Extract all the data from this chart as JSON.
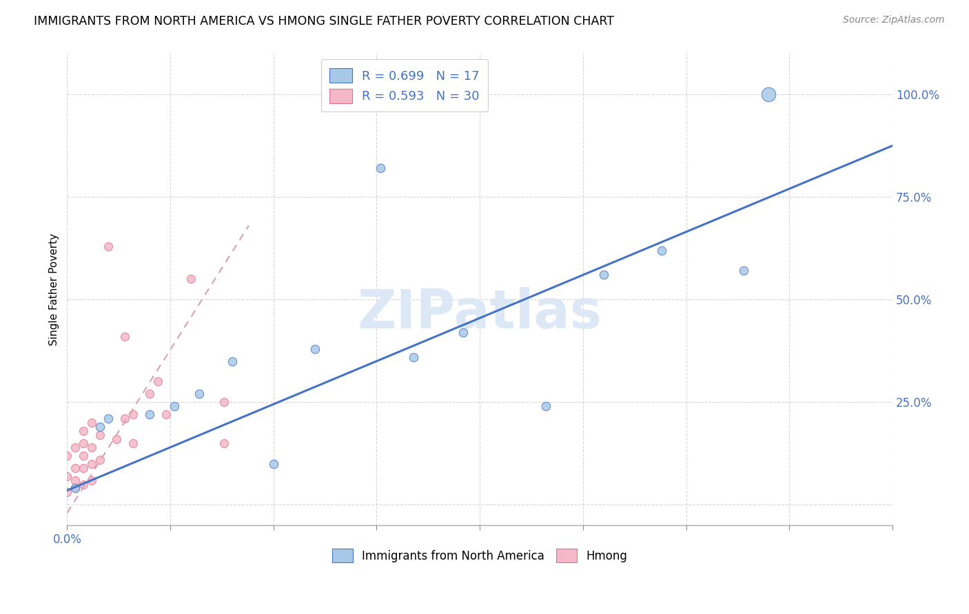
{
  "title": "IMMIGRANTS FROM NORTH AMERICA VS HMONG SINGLE FATHER POVERTY CORRELATION CHART",
  "source": "Source: ZipAtlas.com",
  "ylabel": "Single Father Poverty",
  "xlim": [
    0.0,
    0.1
  ],
  "ylim": [
    -0.05,
    1.1
  ],
  "xticks": [
    0.0,
    0.0125,
    0.025,
    0.0375,
    0.05,
    0.0625,
    0.075,
    0.0875,
    0.1
  ],
  "xticklabels_show": {
    "0.0": "0.0%"
  },
  "yticks": [
    0.0,
    0.25,
    0.5,
    0.75,
    1.0
  ],
  "yticklabels": [
    "",
    "25.0%",
    "50.0%",
    "75.0%",
    "100.0%"
  ],
  "blue_R": 0.699,
  "blue_N": 17,
  "pink_R": 0.593,
  "pink_N": 30,
  "blue_color": "#a8c8e8",
  "pink_color": "#f5b8c8",
  "blue_line_color": "#4472c4",
  "pink_line_color": "#e07090",
  "pink_dash_color": "#d8a0b0",
  "watermark": "ZIPatlas",
  "watermark_color": "#dce8f5",
  "legend_blue_label": "Immigrants from North America",
  "legend_pink_label": "Hmong",
  "blue_points_x": [
    0.001,
    0.004,
    0.005,
    0.01,
    0.013,
    0.016,
    0.02,
    0.025,
    0.03,
    0.038,
    0.042,
    0.048,
    0.058,
    0.065,
    0.072,
    0.082,
    0.085
  ],
  "blue_points_y": [
    0.04,
    0.19,
    0.21,
    0.22,
    0.24,
    0.27,
    0.35,
    0.1,
    0.38,
    0.82,
    0.36,
    0.42,
    0.24,
    0.56,
    0.62,
    0.57,
    1.0
  ],
  "blue_point_sizes": [
    80,
    80,
    80,
    80,
    80,
    80,
    80,
    80,
    80,
    80,
    80,
    80,
    80,
    80,
    80,
    80,
    220
  ],
  "pink_points_x": [
    0.0,
    0.0,
    0.0,
    0.001,
    0.001,
    0.001,
    0.001,
    0.002,
    0.002,
    0.002,
    0.002,
    0.002,
    0.003,
    0.003,
    0.003,
    0.003,
    0.004,
    0.004,
    0.005,
    0.006,
    0.007,
    0.007,
    0.008,
    0.008,
    0.01,
    0.011,
    0.012,
    0.015,
    0.019,
    0.019
  ],
  "pink_points_y": [
    0.03,
    0.07,
    0.12,
    0.04,
    0.06,
    0.09,
    0.14,
    0.05,
    0.09,
    0.12,
    0.15,
    0.18,
    0.06,
    0.1,
    0.14,
    0.2,
    0.11,
    0.17,
    0.63,
    0.16,
    0.21,
    0.41,
    0.15,
    0.22,
    0.27,
    0.3,
    0.22,
    0.55,
    0.15,
    0.25
  ],
  "blue_line_x": [
    0.0,
    0.1
  ],
  "blue_line_y": [
    0.035,
    0.875
  ],
  "pink_line_x": [
    0.0,
    0.022
  ],
  "pink_line_y": [
    -0.02,
    0.68
  ]
}
